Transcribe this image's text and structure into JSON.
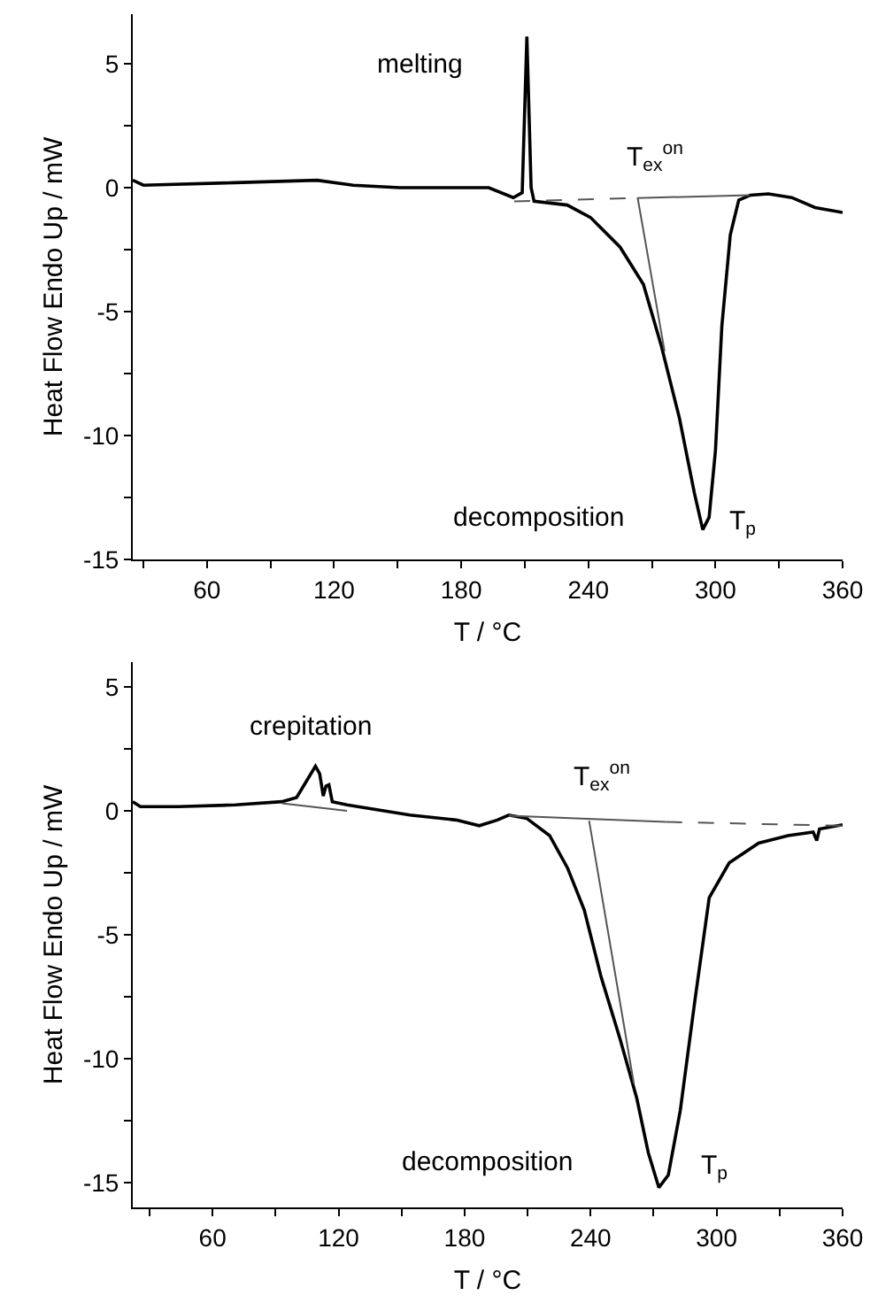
{
  "chart_data": [
    {
      "type": "line",
      "xlabel": "T / °C",
      "ylabel": "Heat Flow Endo Up / mW",
      "xlim": [
        25,
        360
      ],
      "ylim": [
        -15,
        7
      ],
      "xticks": [
        {
          "value": 30,
          "label": null
        },
        60,
        {
          "value": 90,
          "label": null
        },
        120,
        {
          "value": 150,
          "label": null
        },
        180,
        {
          "value": 210,
          "label": null
        },
        240,
        {
          "value": 270,
          "label": null
        },
        300,
        {
          "value": 330,
          "label": null
        },
        360
      ],
      "yticks": [
        -15,
        {
          "value": -12.5,
          "label": null
        },
        -10,
        {
          "value": -7.5,
          "label": null
        },
        -5,
        {
          "value": -2.5,
          "label": null
        },
        0,
        {
          "value": 2.5,
          "label": null
        },
        5
      ],
      "grid": false,
      "marker": "none",
      "series": [
        {
          "color": "#000000",
          "line_style": "solid",
          "x": [
            25,
            30,
            73,
            112,
            129,
            151,
            179,
            193,
            204.6,
            208.8,
            211,
            213,
            214.4,
            230,
            241,
            255,
            266,
            274.5,
            283,
            290,
            294,
            297,
            300,
            303,
            307,
            311,
            316.5,
            325,
            336,
            347,
            360
          ],
          "values": [
            0.3,
            0.1,
            0.2,
            0.3,
            0.1,
            0,
            0,
            0,
            -0.4,
            -0.2,
            6.1,
            0,
            -0.55,
            -0.7,
            -1.2,
            -2.4,
            -3.9,
            -6.4,
            -9.3,
            -12.3,
            -13.8,
            -13.3,
            -10.6,
            -5.6,
            -1.9,
            -0.5,
            -0.3,
            -0.25,
            -0.4,
            -0.8,
            -1.0
          ]
        },
        {
          "color": "#555555",
          "line_style": "dashed",
          "x": [
            205,
            263
          ],
          "values": [
            -0.55,
            -0.42
          ]
        },
        {
          "color": "#555555",
          "line_style": "solid",
          "x": [
            263,
            316
          ],
          "values": [
            -0.42,
            -0.3
          ]
        },
        {
          "color": "#555555",
          "line_style": "solid",
          "x": [
            263.3,
            276
          ],
          "values": [
            -0.42,
            -6.6
          ]
        }
      ],
      "annotations": [
        "melting",
        "T$_{ex}$$^{on}$",
        "decomposition",
        "T$_{p}$"
      ]
    },
    {
      "type": "line",
      "xlabel": "T / °C",
      "ylabel": "Heat Flow Endo Up / mW",
      "xlim": [
        22,
        360
      ],
      "ylim": [
        -16,
        6
      ],
      "xticks": [
        {
          "value": 30,
          "label": null
        },
        60,
        {
          "value": 90,
          "label": null
        },
        120,
        {
          "value": 150,
          "label": null
        },
        180,
        {
          "value": 210,
          "label": null
        },
        240,
        {
          "value": 270,
          "label": null
        },
        300,
        {
          "value": 330,
          "label": null
        },
        360
      ],
      "yticks": [
        -15,
        {
          "value": -12.5,
          "label": null
        },
        -10,
        {
          "value": -7.5,
          "label": null
        },
        -5,
        {
          "value": -2.5,
          "label": null
        },
        0,
        {
          "value": 2.5,
          "label": null
        },
        5
      ],
      "grid": false,
      "marker": "none",
      "series": [
        {
          "color": "#000000",
          "line_style": "solid",
          "x": [
            22,
            25.6,
            43.6,
            71,
            93,
            100,
            104,
            109,
            111,
            112.7,
            114,
            115.4,
            117,
            124,
            154,
            176,
            187,
            195.6,
            201,
            209.5,
            220.5,
            229,
            237,
            245,
            254,
            262,
            267.5,
            272.5,
            277,
            282.7,
            289.6,
            296.5,
            306,
            320,
            334,
            346,
            347.7,
            349,
            360
          ],
          "values": [
            0.37,
            0.17,
            0.17,
            0.24,
            0.37,
            0.54,
            1.1,
            1.8,
            1.5,
            0.6,
            1.0,
            1.05,
            0.37,
            0.24,
            -0.17,
            -0.37,
            -0.6,
            -0.37,
            -0.17,
            -0.3,
            -1.0,
            -2.3,
            -4.0,
            -6.7,
            -9.2,
            -11.6,
            -13.8,
            -15.2,
            -14.7,
            -12.1,
            -7.7,
            -3.5,
            -2.1,
            -1.3,
            -1.0,
            -0.86,
            -1.2,
            -0.73,
            -0.56
          ]
        },
        {
          "color": "#555555",
          "line_style": "solid",
          "x": [
            93,
            124
          ],
          "values": [
            0.3,
            0.0
          ]
        },
        {
          "color": "#555555",
          "line_style": "solid",
          "x": [
            201,
            276
          ],
          "values": [
            -0.2,
            -0.45
          ]
        },
        {
          "color": "#555555",
          "line_style": "dashed",
          "x": [
            276,
            360
          ],
          "values": [
            -0.45,
            -0.6
          ]
        },
        {
          "color": "#555555",
          "line_style": "solid",
          "x": [
            239.3,
            260.6
          ],
          "values": [
            -0.4,
            -11.0
          ]
        }
      ],
      "annotations": [
        "crepitation",
        "T$_{ex}$$^{on}$",
        "decomposition",
        "T$_{p}$"
      ]
    }
  ]
}
